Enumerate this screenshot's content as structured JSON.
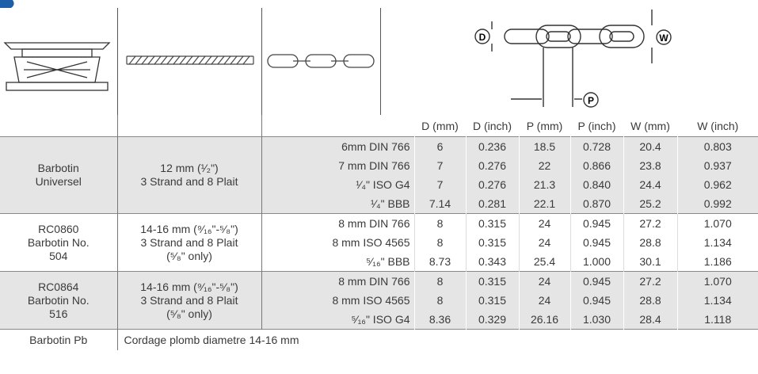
{
  "diagram": {
    "labels": [
      "D",
      "P",
      "W"
    ]
  },
  "table": {
    "headers": [
      "D (mm)",
      "D (inch)",
      "P (mm)",
      "P (inch)",
      "W (mm)",
      "W (inch)"
    ],
    "groups": [
      {
        "name": [
          "Barbotin",
          "Universel"
        ],
        "rope": [
          "12 mm (¹⁄₂\")",
          "3 Strand and 8 Plait"
        ],
        "rows": [
          {
            "chain": "6mm DIN 766",
            "values": [
              "6",
              "0.236",
              "18.5",
              "0.728",
              "20.4",
              "0.803"
            ]
          },
          {
            "chain": "7 mm DIN 766",
            "values": [
              "7",
              "0.276",
              "22",
              "0.866",
              "23.8",
              "0.937"
            ]
          },
          {
            "chain": "¹⁄₄\" ISO G4",
            "values": [
              "7",
              "0.276",
              "21.3",
              "0.840",
              "24.4",
              "0.962"
            ]
          },
          {
            "chain": "¹⁄₄\" BBB",
            "values": [
              "7.14",
              "0.281",
              "22.1",
              "0.870",
              "25.2",
              "0.992"
            ]
          }
        ]
      },
      {
        "name": [
          "RC0860",
          "Barbotin No.",
          "504"
        ],
        "rope": [
          "14-16 mm (⁹⁄₁₆\"-⁵⁄₈\")",
          "3 Strand and 8 Plait",
          "(⁵⁄₈\" only)"
        ],
        "rows": [
          {
            "chain": "8 mm DIN 766",
            "values": [
              "8",
              "0.315",
              "24",
              "0.945",
              "27.2",
              "1.070"
            ]
          },
          {
            "chain": "8 mm ISO 4565",
            "values": [
              "8",
              "0.315",
              "24",
              "0.945",
              "28.8",
              "1.134"
            ]
          },
          {
            "chain": "⁵⁄₁₆\" BBB",
            "values": [
              "8.73",
              "0.343",
              "25.4",
              "1.000",
              "30.1",
              "1.186"
            ]
          }
        ]
      },
      {
        "name": [
          "RC0864",
          "Barbotin No.",
          "516"
        ],
        "rope": [
          "14-16 mm (⁹⁄₁₆\"-⁵⁄₈\")",
          "3 Strand and 8 Plait",
          "(⁵⁄₈\" only)"
        ],
        "rows": [
          {
            "chain": "8 mm DIN 766",
            "values": [
              "8",
              "0.315",
              "24",
              "0.945",
              "27.2",
              "1.070"
            ]
          },
          {
            "chain": "8 mm ISO 4565",
            "values": [
              "8",
              "0.315",
              "24",
              "0.945",
              "28.8",
              "1.134"
            ]
          },
          {
            "chain": "⁵⁄₁₆\" ISO G4",
            "values": [
              "8.36",
              "0.329",
              "26.16",
              "1.030",
              "28.4",
              "1.118"
            ]
          }
        ]
      }
    ],
    "footer": {
      "name": "Barbotin Pb",
      "text": "Cordage plomb diametre 14-16 mm"
    }
  }
}
